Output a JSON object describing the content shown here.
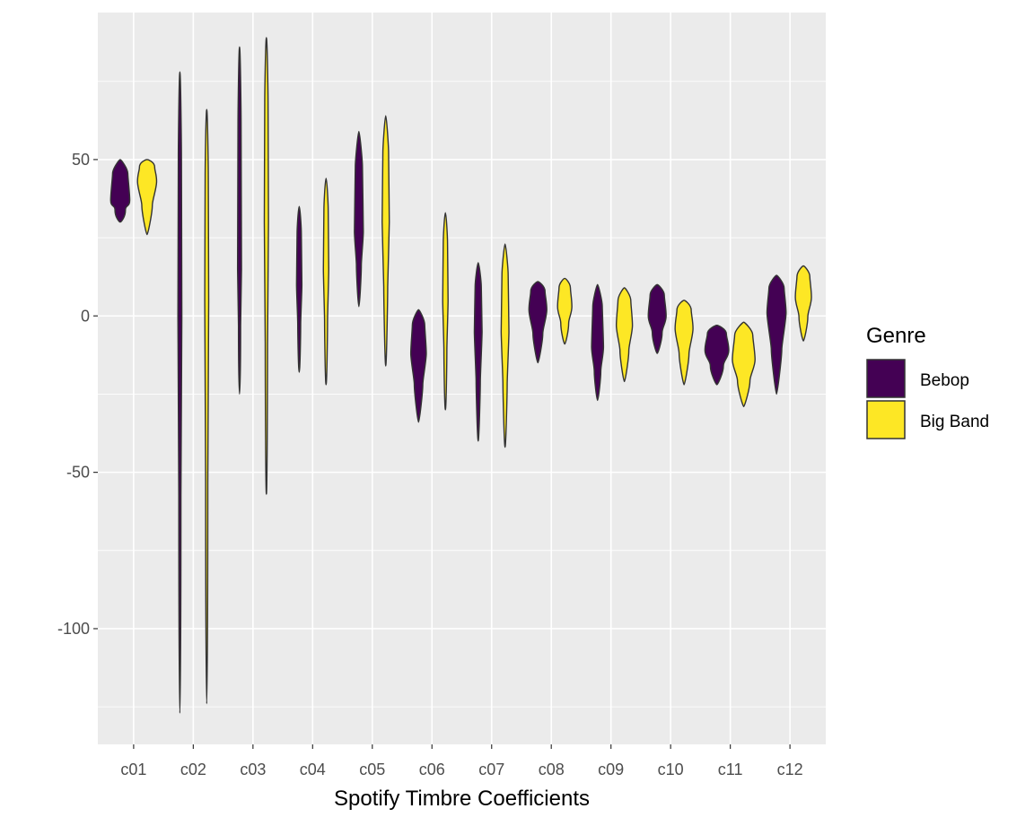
{
  "chart_data": {
    "type": "violin",
    "xlabel": "Spotify Timbre Coefficients",
    "ylabel": "",
    "ylim": [
      -137,
      97
    ],
    "yticks": [
      -100,
      -50,
      0,
      50
    ],
    "ytick_labels": [
      "-100",
      "-50",
      "0",
      "50"
    ],
    "categories": [
      "c01",
      "c02",
      "c03",
      "c04",
      "c05",
      "c06",
      "c07",
      "c08",
      "c09",
      "c10",
      "c11",
      "c12"
    ],
    "grid": true,
    "legend": {
      "title": "Genre",
      "position": "right",
      "entries": [
        {
          "label": "Bebop",
          "color": "#440154"
        },
        {
          "label": "Big Band",
          "color": "#FDE725"
        }
      ]
    },
    "series": [
      {
        "name": "Bebop",
        "color": "#440154",
        "violins": [
          {
            "min": 30,
            "max": 50,
            "mode": 37,
            "halfwidth": 0.32
          },
          {
            "min": -127,
            "max": 78,
            "mode": 0,
            "halfwidth": 0.04
          },
          {
            "min": -25,
            "max": 86,
            "mode": 15,
            "halfwidth": 0.06
          },
          {
            "min": -18,
            "max": 35,
            "mode": 10,
            "halfwidth": 0.09
          },
          {
            "min": 3,
            "max": 59,
            "mode": 27,
            "halfwidth": 0.15
          },
          {
            "min": -34,
            "max": 2,
            "mode": -12,
            "halfwidth": 0.26
          },
          {
            "min": -40,
            "max": 17,
            "mode": -5,
            "halfwidth": 0.13
          },
          {
            "min": -15,
            "max": 11,
            "mode": 2,
            "halfwidth": 0.3
          },
          {
            "min": -27,
            "max": 10,
            "mode": -10,
            "halfwidth": 0.2
          },
          {
            "min": -12,
            "max": 10,
            "mode": 0,
            "halfwidth": 0.3
          },
          {
            "min": -22,
            "max": -3,
            "mode": -11,
            "halfwidth": 0.4
          },
          {
            "min": -25,
            "max": 13,
            "mode": 1,
            "halfwidth": 0.32
          }
        ]
      },
      {
        "name": "Big Band",
        "color": "#FDE725",
        "violins": [
          {
            "min": 26,
            "max": 50,
            "mode": 43,
            "halfwidth": 0.32
          },
          {
            "min": -124,
            "max": 66,
            "mode": 5,
            "halfwidth": 0.04
          },
          {
            "min": -57,
            "max": 89,
            "mode": 30,
            "halfwidth": 0.07
          },
          {
            "min": -22,
            "max": 44,
            "mode": 15,
            "halfwidth": 0.09
          },
          {
            "min": -16,
            "max": 64,
            "mode": 30,
            "halfwidth": 0.12
          },
          {
            "min": -30,
            "max": 33,
            "mode": 5,
            "halfwidth": 0.09
          },
          {
            "min": -42,
            "max": 23,
            "mode": -5,
            "halfwidth": 0.13
          },
          {
            "min": -9,
            "max": 12,
            "mode": 3,
            "halfwidth": 0.24
          },
          {
            "min": -21,
            "max": 9,
            "mode": -3,
            "halfwidth": 0.27
          },
          {
            "min": -22,
            "max": 5,
            "mode": -4,
            "halfwidth": 0.3
          },
          {
            "min": -29,
            "max": -2,
            "mode": -14,
            "halfwidth": 0.38
          },
          {
            "min": -8,
            "max": 16,
            "mode": 6,
            "halfwidth": 0.27
          }
        ]
      }
    ]
  }
}
